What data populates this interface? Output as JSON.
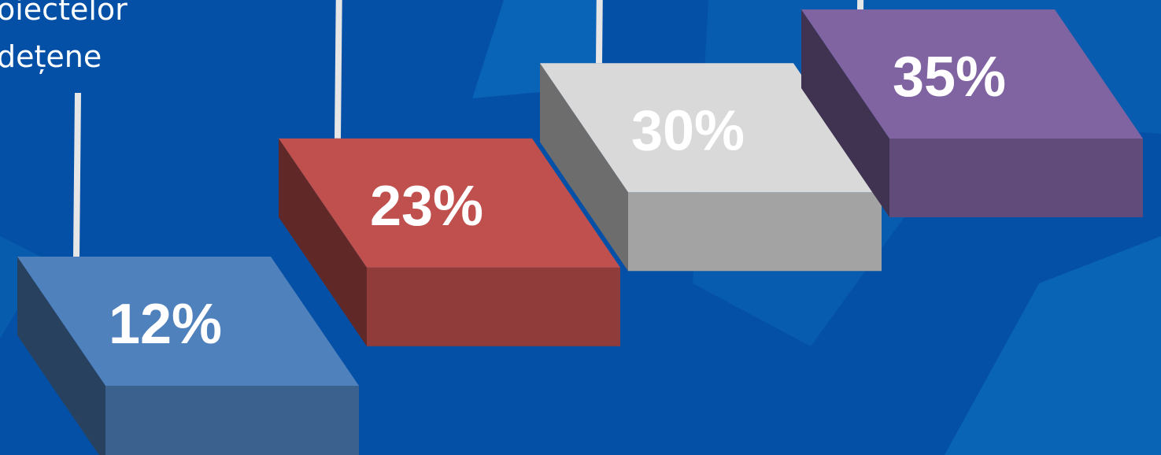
{
  "caption": {
    "line1": "oiectelor",
    "line2": "dețene"
  },
  "chart_data": {
    "type": "bar",
    "style": "3d-steps",
    "categories": [],
    "values": [
      12,
      23,
      30,
      35
    ],
    "labels": [
      "12%",
      "23%",
      "30%",
      "35%"
    ],
    "colors": [
      "#4f81bd",
      "#c0504d",
      "#d9d9d9",
      "#8064a2"
    ],
    "background": "#0450a6",
    "title": "",
    "xlabel": "",
    "ylabel": ""
  }
}
